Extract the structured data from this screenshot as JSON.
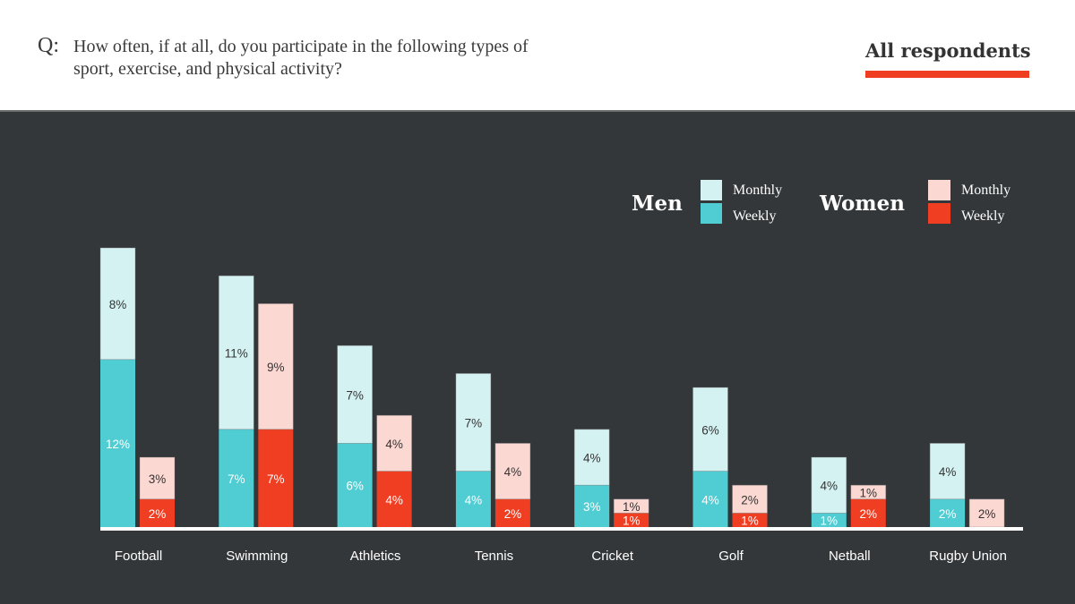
{
  "header": {
    "q_mark": "Q:",
    "question": "How often, if at all, do you participate in the following types of sport, exercise, and physical activity?",
    "audience": "All respondents"
  },
  "colors": {
    "men_monthly": "#d5f2f3",
    "men_weekly": "#4fcdd3",
    "women_monthly": "#fcd8d3",
    "women_weekly": "#f03e22",
    "accent": "#f03e22",
    "panel": "#33373a"
  },
  "chart_data": {
    "type": "bar",
    "stacked": true,
    "title": "How often, if at all, do you participate in the following types of sport, exercise, and physical activity?",
    "subtitle": "All respondents",
    "xlabel": "",
    "ylabel": "",
    "unit": "%",
    "ylim": [
      0,
      20
    ],
    "grid": false,
    "legend_position": "top-right",
    "legend": {
      "groups": [
        {
          "name": "Men",
          "items": [
            "Monthly",
            "Weekly"
          ]
        },
        {
          "name": "Women",
          "items": [
            "Monthly",
            "Weekly"
          ]
        }
      ]
    },
    "categories": [
      "Football",
      "Swimming",
      "Athletics",
      "Tennis",
      "Cricket",
      "Golf",
      "Netball",
      "Rugby Union"
    ],
    "series": [
      {
        "name": "Men Weekly",
        "group": "Men",
        "stack": "men",
        "values": [
          12,
          7,
          6,
          4,
          3,
          4,
          1,
          2
        ]
      },
      {
        "name": "Men Monthly",
        "group": "Men",
        "stack": "men",
        "values": [
          8,
          11,
          7,
          7,
          4,
          6,
          4,
          4
        ]
      },
      {
        "name": "Women Weekly",
        "group": "Women",
        "stack": "women",
        "values": [
          2,
          7,
          4,
          2,
          1,
          1,
          2,
          0
        ]
      },
      {
        "name": "Women Monthly",
        "group": "Women",
        "stack": "women",
        "values": [
          3,
          9,
          4,
          4,
          1,
          2,
          1,
          2
        ]
      }
    ]
  }
}
